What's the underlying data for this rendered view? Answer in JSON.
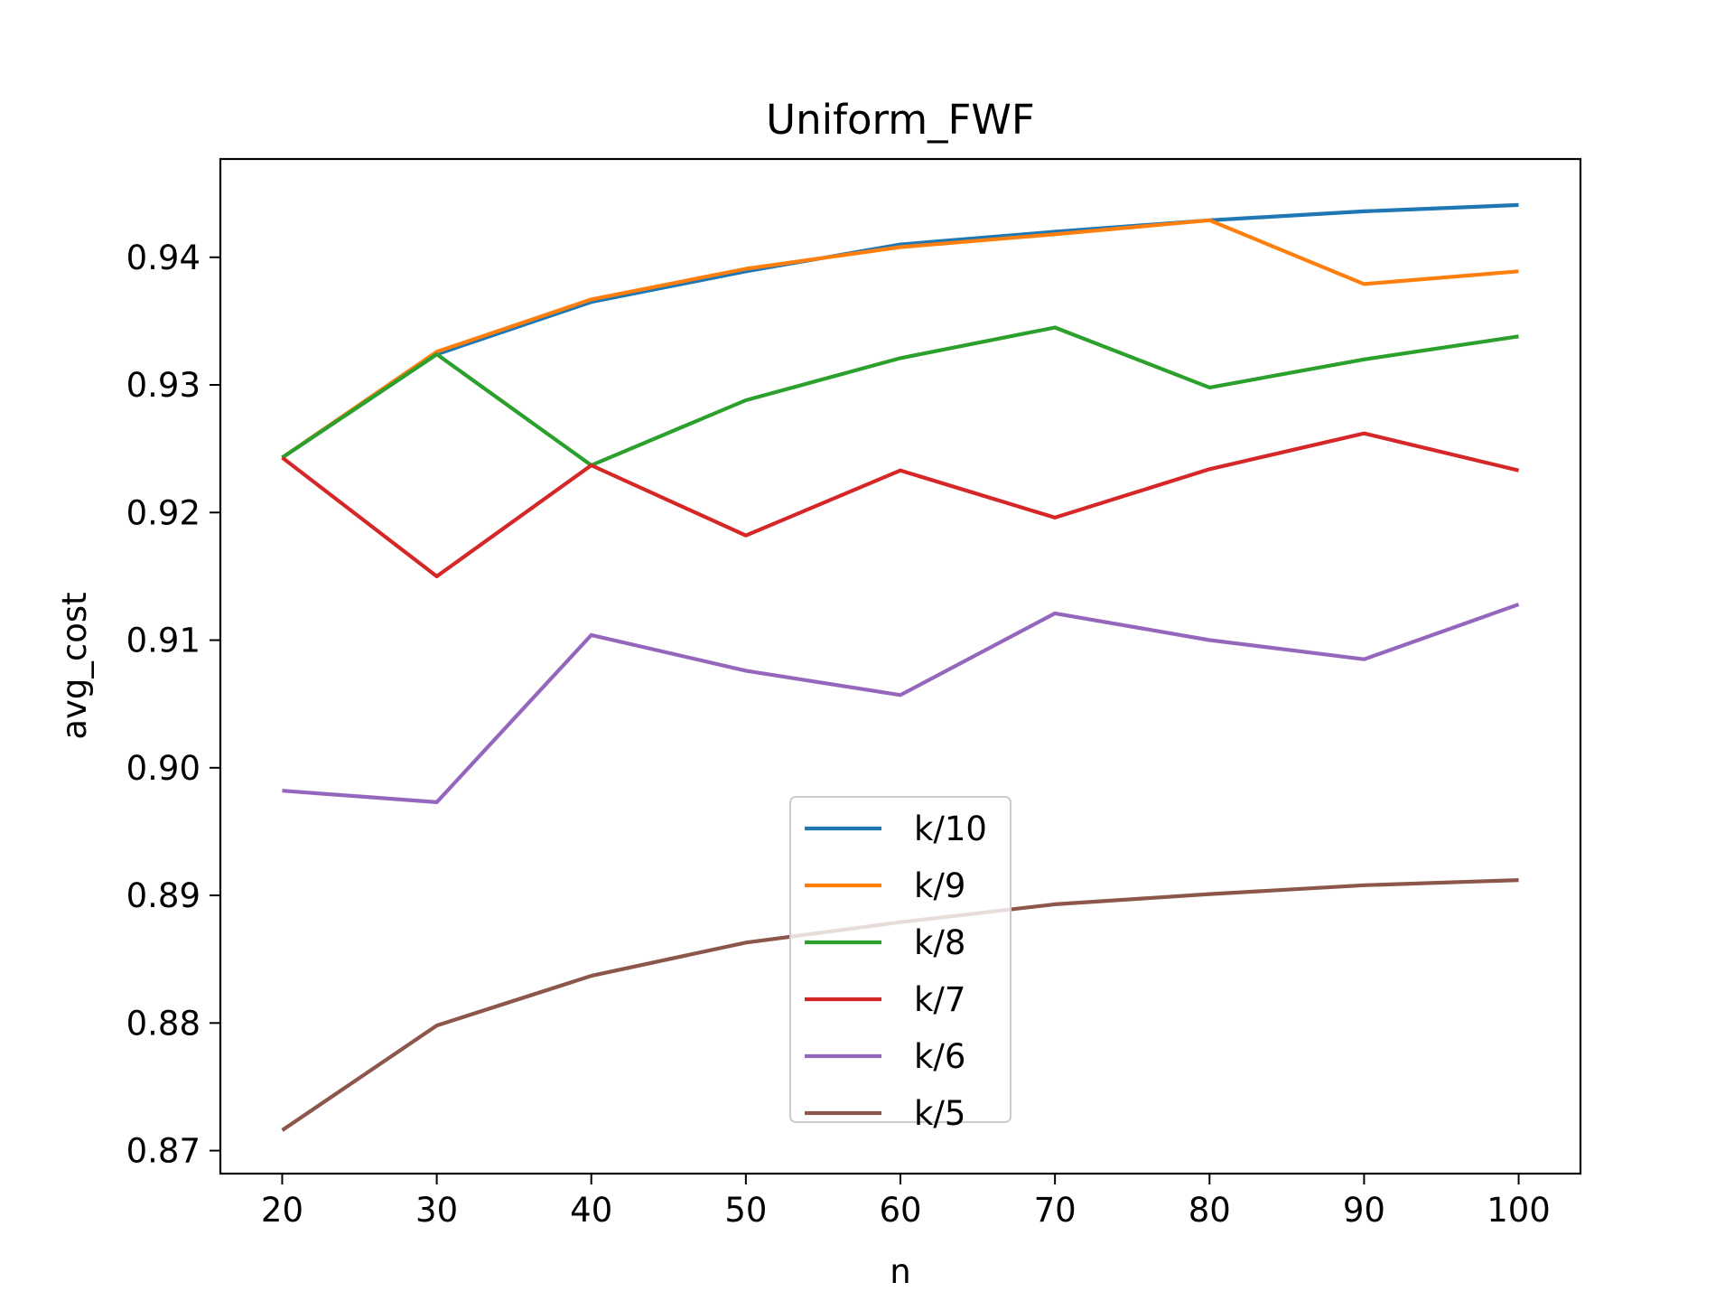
{
  "chart_data": {
    "type": "line",
    "title": "Uniform_FWF",
    "xlabel": "n",
    "ylabel": "avg_cost",
    "x": [
      20,
      30,
      40,
      50,
      60,
      70,
      80,
      90,
      100
    ],
    "xlim": [
      16,
      104
    ],
    "ylim": [
      0.8682,
      0.9477
    ],
    "x_ticks": [
      20,
      30,
      40,
      50,
      60,
      70,
      80,
      90,
      100
    ],
    "y_ticks": [
      0.87,
      0.88,
      0.89,
      0.9,
      0.91,
      0.92,
      0.93,
      0.94
    ],
    "x_tick_labels": [
      "20",
      "30",
      "40",
      "50",
      "60",
      "70",
      "80",
      "90",
      "100"
    ],
    "y_tick_labels": [
      "0.87",
      "0.88",
      "0.89",
      "0.90",
      "0.91",
      "0.92",
      "0.93",
      "0.94"
    ],
    "grid": false,
    "legend_position": "lower-center",
    "series": [
      {
        "name": "k/10",
        "color": "#1f77b4",
        "values": [
          0.9243,
          0.9324,
          0.9365,
          0.9389,
          0.941,
          0.942,
          0.9429,
          0.9436,
          0.9441
        ]
      },
      {
        "name": "k/9",
        "color": "#ff7f0e",
        "values": [
          0.9243,
          0.9326,
          0.9367,
          0.9391,
          0.9408,
          0.9418,
          0.9429,
          0.9379,
          0.9389
        ]
      },
      {
        "name": "k/8",
        "color": "#2ca02c",
        "values": [
          0.9243,
          0.9324,
          0.9237,
          0.9288,
          0.9321,
          0.9345,
          0.9298,
          0.932,
          0.9338
        ]
      },
      {
        "name": "k/7",
        "color": "#d62728",
        "values": [
          0.9243,
          0.915,
          0.9237,
          0.9182,
          0.9233,
          0.9196,
          0.9234,
          0.9262,
          0.9233
        ]
      },
      {
        "name": "k/6",
        "color": "#9467bd",
        "values": [
          0.8982,
          0.8973,
          0.9104,
          0.9076,
          0.9057,
          0.9121,
          0.91,
          0.9085,
          0.9128
        ]
      },
      {
        "name": "k/5",
        "color": "#8c564b",
        "values": [
          0.8716,
          0.8798,
          0.8837,
          0.8863,
          0.8879,
          0.8893,
          0.8901,
          0.8908,
          0.8912
        ]
      }
    ]
  }
}
